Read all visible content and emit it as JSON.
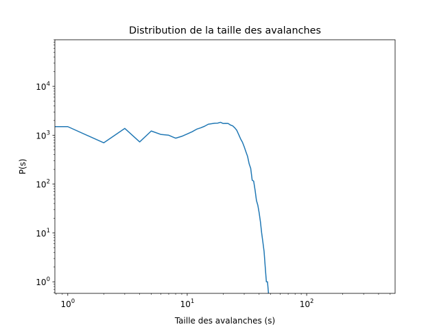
{
  "chart_data": {
    "type": "line",
    "title": "Distribution de la taille des avalanches",
    "xlabel": "Taille des avalanches (s)",
    "ylabel": "P(s)",
    "xscale": "log",
    "yscale": "log",
    "xlim": [
      0.78,
      550
    ],
    "ylim": [
      0.58,
      90000
    ],
    "grid": false,
    "line_color": "#1f77b4",
    "x_ticks": [
      {
        "value": 1,
        "base": "10",
        "exp": "0"
      },
      {
        "value": 10,
        "base": "10",
        "exp": "1"
      },
      {
        "value": 100,
        "base": "10",
        "exp": "2"
      }
    ],
    "y_ticks": [
      {
        "value": 1,
        "base": "10",
        "exp": "0"
      },
      {
        "value": 10,
        "base": "10",
        "exp": "1"
      },
      {
        "value": 100,
        "base": "10",
        "exp": "2"
      },
      {
        "value": 1000,
        "base": "10",
        "exp": "3"
      },
      {
        "value": 10000,
        "base": "10",
        "exp": "4"
      }
    ],
    "series": [
      {
        "x": [
          0.78,
          1,
          2,
          3,
          4,
          5,
          6,
          7,
          8,
          9,
          10,
          11,
          12,
          13,
          14,
          15,
          16,
          17,
          18,
          19,
          20,
          21,
          22,
          23,
          24,
          25,
          26,
          27,
          28,
          29,
          30,
          31,
          32,
          33,
          34,
          35,
          36,
          37,
          38,
          39,
          40,
          41,
          42,
          43,
          44,
          45,
          46,
          47,
          48,
          49,
          50,
          51,
          52
        ],
        "y": [
          1500,
          1500,
          700,
          1380,
          730,
          1220,
          1040,
          1000,
          870,
          950,
          1060,
          1180,
          1330,
          1420,
          1530,
          1680,
          1720,
          1760,
          1770,
          1840,
          1740,
          1750,
          1740,
          1620,
          1560,
          1420,
          1260,
          1030,
          840,
          720,
          580,
          460,
          370,
          260,
          210,
          120,
          115,
          75,
          46,
          37,
          26,
          17,
          10,
          6.5,
          4.2,
          2.0,
          1.0,
          1.0,
          0.55,
          0.5,
          0.4,
          0.4,
          0.4
        ]
      }
    ]
  }
}
